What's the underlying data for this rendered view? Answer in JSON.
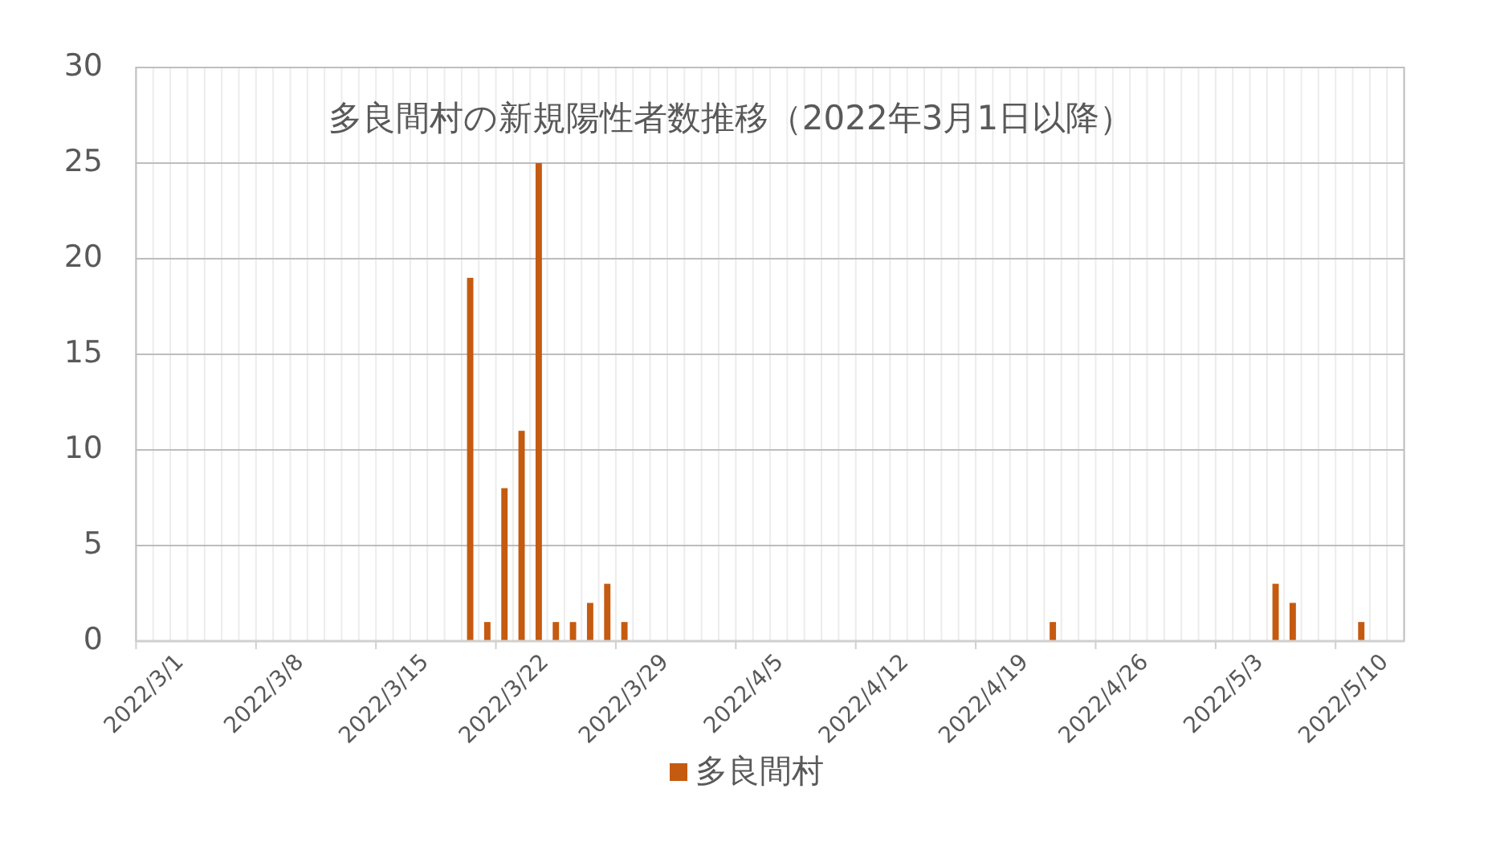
{
  "chart_data": {
    "type": "bar",
    "title": "多良間村の新規陽性者数推移（2022年3月1日以降）",
    "categories": [
      "2022/3/1",
      null,
      null,
      null,
      null,
      null,
      null,
      "2022/3/8",
      null,
      null,
      null,
      null,
      null,
      null,
      "2022/3/15",
      null,
      null,
      null,
      null,
      null,
      null,
      "2022/3/22",
      null,
      null,
      null,
      null,
      null,
      null,
      "2022/3/29",
      null,
      null,
      null,
      null,
      null,
      null,
      "2022/4/5",
      null,
      null,
      null,
      null,
      null,
      null,
      "2022/4/12",
      null,
      null,
      null,
      null,
      null,
      null,
      "2022/4/19",
      null,
      null,
      null,
      null,
      null,
      null,
      "2022/4/26",
      null,
      null,
      null,
      null,
      null,
      null,
      "2022/5/3",
      null,
      null,
      null,
      null,
      null,
      null,
      "2022/5/10",
      null,
      null,
      null
    ],
    "series": [
      {
        "name": "多良間村",
        "color": "#c55a11",
        "values": [
          0,
          0,
          0,
          0,
          0,
          0,
          0,
          0,
          0,
          0,
          0,
          0,
          0,
          0,
          0,
          0,
          0,
          0,
          0,
          19,
          1,
          8,
          11,
          25,
          1,
          1,
          2,
          3,
          1,
          0,
          0,
          0,
          0,
          0,
          0,
          0,
          0,
          0,
          0,
          0,
          0,
          0,
          0,
          0,
          0,
          0,
          0,
          0,
          0,
          0,
          0,
          0,
          0,
          1,
          0,
          0,
          0,
          0,
          0,
          0,
          0,
          0,
          0,
          0,
          0,
          0,
          3,
          2,
          0,
          0,
          0,
          1,
          0,
          0
        ]
      }
    ],
    "ylim": [
      0,
      30
    ],
    "yticks": [
      0,
      5,
      10,
      15,
      20,
      25,
      30
    ],
    "grid": true,
    "legend": "bottom"
  }
}
